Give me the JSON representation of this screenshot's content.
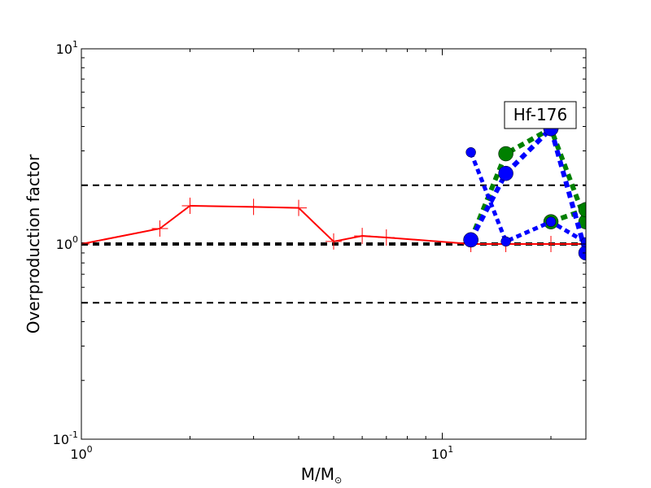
{
  "chart_data": {
    "type": "line",
    "title": "",
    "annotation": "Hf-176",
    "xlabel": "M/M",
    "xlabel_subscript": "⊙",
    "ylabel": "Overproduction factor",
    "xscale": "log",
    "yscale": "log",
    "xlim": [
      1,
      25
    ],
    "ylim": [
      0.1,
      10
    ],
    "x_ticks": [
      {
        "value": 1,
        "base": "10",
        "exp": "0"
      },
      {
        "value": 10,
        "base": "10",
        "exp": "1"
      }
    ],
    "y_ticks": [
      {
        "value": 0.1,
        "base": "10",
        "exp": "-1"
      },
      {
        "value": 1,
        "base": "10",
        "exp": "0"
      },
      {
        "value": 10,
        "base": "10",
        "exp": "1"
      }
    ],
    "reference_lines": [
      {
        "y": 2.0,
        "style": "dashed",
        "color": "#000000",
        "width": 2
      },
      {
        "y": 1.0,
        "style": "dashed",
        "color": "#000000",
        "width": 4
      },
      {
        "y": 0.5,
        "style": "dashed",
        "color": "#000000",
        "width": 2
      }
    ],
    "series": [
      {
        "color": "#ff0000",
        "style": "solid",
        "width": 2,
        "marker": "plus",
        "marker_size": 10,
        "x": [
          1,
          1.65,
          2,
          3,
          4,
          5,
          6,
          7,
          12,
          15,
          20,
          25
        ],
        "y": [
          1.0,
          1.2,
          1.57,
          1.55,
          1.53,
          1.03,
          1.1,
          1.08,
          1.0,
          1.0,
          1.0,
          1.0
        ]
      },
      {
        "color": "#008000",
        "style": "dotted",
        "width": 6,
        "marker": "circle",
        "marker_size": 9,
        "x": [
          12,
          15,
          20,
          25
        ],
        "y": [
          1.05,
          2.9,
          3.9,
          1.3
        ]
      },
      {
        "color": "#008000",
        "style": "dotted",
        "width": 6,
        "marker": "circle",
        "marker_size": 9,
        "x": [
          20,
          25
        ],
        "y": [
          1.3,
          1.5
        ]
      },
      {
        "color": "#0000ff",
        "style": "dotted",
        "width": 6,
        "marker": "circle",
        "marker_size": 9,
        "x": [
          12,
          15,
          20,
          25
        ],
        "y": [
          1.05,
          2.3,
          3.9,
          0.9
        ]
      },
      {
        "color": "#0000ff",
        "style": "dotted",
        "width": 5,
        "marker": "circle",
        "marker_size": 6,
        "x": [
          12,
          15,
          20,
          25
        ],
        "y": [
          2.95,
          1.03,
          1.3,
          1.02
        ]
      }
    ]
  }
}
